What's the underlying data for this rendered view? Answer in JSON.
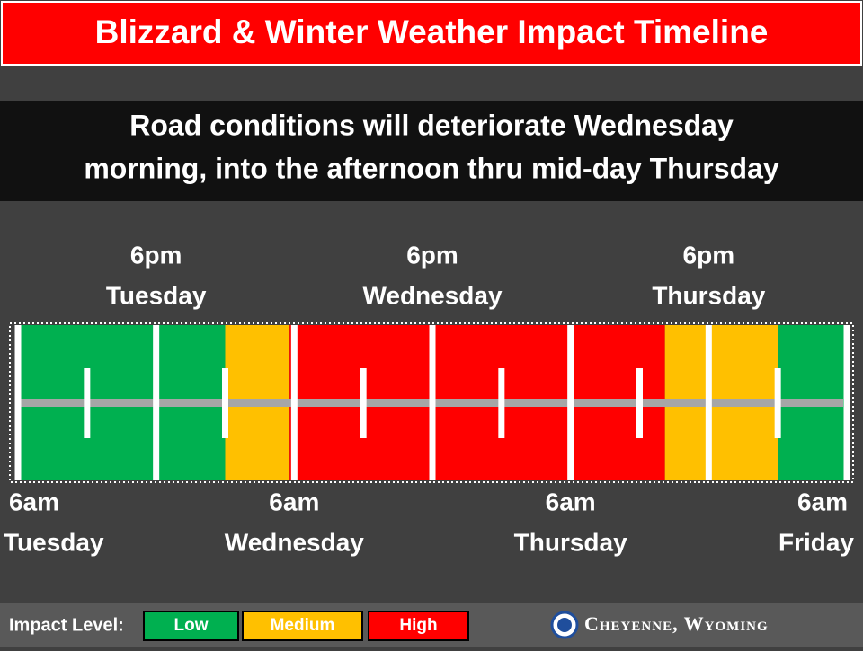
{
  "header": {
    "title": "Blizzard & Winter Weather Impact Timeline"
  },
  "message": {
    "lines": [
      "Road conditions will deteriorate Wednesday",
      "morning, into the afternoon thru mid-day Thursday"
    ]
  },
  "top_labels": [
    {
      "time": "6pm",
      "day": "Tuesday"
    },
    {
      "time": "6pm",
      "day": "Wednesday"
    },
    {
      "time": "6pm",
      "day": "Thursday"
    }
  ],
  "bottom_labels": [
    {
      "time": "6am",
      "day": "Tuesday"
    },
    {
      "time": "6am",
      "day": "Wednesday"
    },
    {
      "time": "6am",
      "day": "Thursday"
    },
    {
      "time": "6am",
      "day": "Friday"
    }
  ],
  "legend": {
    "label": "Impact Level:",
    "items": [
      {
        "label": "Low",
        "color": "#00b050"
      },
      {
        "label": "Medium",
        "color": "#ffc000"
      },
      {
        "label": "High",
        "color": "#ff0000"
      }
    ]
  },
  "office": "Cheyenne, Wyoming"
}
